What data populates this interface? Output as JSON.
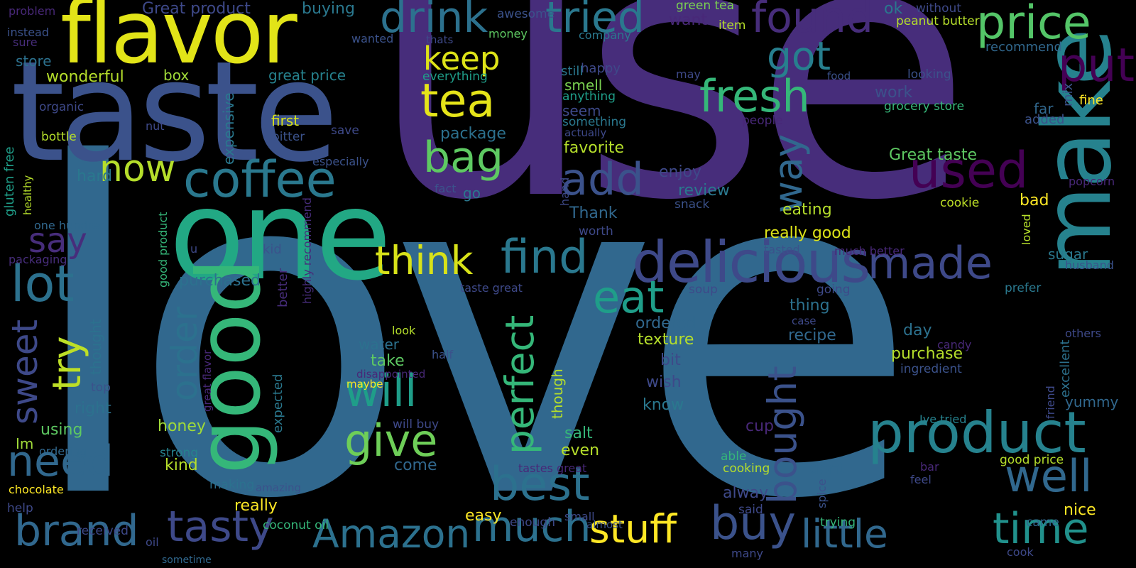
{
  "palette": {
    "dark_purple": "#440154",
    "purple": "#482878",
    "indigo": "#3e4989",
    "blue": "#31688e",
    "teal": "#26828e",
    "green_teal": "#1f9e89",
    "green": "#35b779",
    "light_green": "#6ece58",
    "yellow_green": "#b5de2b",
    "yellow": "#fde725"
  },
  "words": [
    {
      "text": "love",
      "color": "#31688e"
    },
    {
      "text": "use",
      "color": "#472d7b"
    },
    {
      "text": "taste",
      "color": "#3b528b"
    },
    {
      "text": "flavor",
      "color": "#e2e418"
    },
    {
      "text": "one",
      "color": "#22a884"
    },
    {
      "text": "good",
      "color": "#35b779"
    },
    {
      "text": "make",
      "color": "#26828e"
    },
    {
      "text": "product",
      "color": "#26828e"
    },
    {
      "text": "delicious",
      "color": "#3e4989"
    },
    {
      "text": "coffee",
      "color": "#2a788e"
    },
    {
      "text": "drink",
      "color": "#2c718e"
    },
    {
      "text": "tried",
      "color": "#2a788e"
    },
    {
      "text": "found",
      "color": "#472d7b"
    },
    {
      "text": "price",
      "color": "#54c568"
    },
    {
      "text": "tea",
      "color": "#e5e419"
    },
    {
      "text": "keep",
      "color": "#dde318"
    },
    {
      "text": "bag",
      "color": "#5ec962"
    },
    {
      "text": "now",
      "color": "#b5de2b"
    },
    {
      "text": "add",
      "color": "#3b528b"
    },
    {
      "text": "used",
      "color": "#440154"
    },
    {
      "text": "put",
      "color": "#440154"
    },
    {
      "text": "fresh",
      "color": "#35b779"
    },
    {
      "text": "got",
      "color": "#277f8e"
    },
    {
      "text": "way",
      "color": "#31688e"
    },
    {
      "text": "find",
      "color": "#2a788e"
    },
    {
      "text": "think",
      "color": "#d8e219"
    },
    {
      "text": "made",
      "color": "#3e4989"
    },
    {
      "text": "eat",
      "color": "#1f9e89"
    },
    {
      "text": "lot",
      "color": "#2c718e"
    },
    {
      "text": "try",
      "color": "#bddf26"
    },
    {
      "text": "say",
      "color": "#472d7b"
    },
    {
      "text": "sweet",
      "color": "#3e4989"
    },
    {
      "text": "need",
      "color": "#31688e"
    },
    {
      "text": "order",
      "color": "#2c718e"
    },
    {
      "text": "will",
      "color": "#1f9e89"
    },
    {
      "text": "give",
      "color": "#6ece58"
    },
    {
      "text": "perfect",
      "color": "#35b779"
    },
    {
      "text": "bought",
      "color": "#3b528b"
    },
    {
      "text": "best",
      "color": "#2c718e"
    },
    {
      "text": "buy",
      "color": "#3b528b"
    },
    {
      "text": "well",
      "color": "#31688e"
    },
    {
      "text": "brand",
      "color": "#31688e"
    },
    {
      "text": "tasty",
      "color": "#3e4989"
    },
    {
      "text": "Amazon",
      "color": "#2c718e"
    },
    {
      "text": "much",
      "color": "#2c718e"
    },
    {
      "text": "stuff",
      "color": "#fde725"
    },
    {
      "text": "little",
      "color": "#31688e"
    },
    {
      "text": "time",
      "color": "#21918c"
    },
    {
      "text": "Great product",
      "color": "#3e4989"
    },
    {
      "text": "buying",
      "color": "#2a788e"
    },
    {
      "text": "awesome",
      "color": "#3b528b"
    },
    {
      "text": "green tea",
      "color": "#7ad151"
    },
    {
      "text": "ok",
      "color": "#2a788e"
    },
    {
      "text": "without",
      "color": "#3e4989"
    },
    {
      "text": "peanut butter",
      "color": "#b5de2b"
    },
    {
      "text": "money",
      "color": "#5ec962"
    },
    {
      "text": "company",
      "color": "#2a788e"
    },
    {
      "text": "want",
      "color": "#482878"
    },
    {
      "text": "item",
      "color": "#b5de2b"
    },
    {
      "text": "wanted",
      "color": "#3b528b"
    },
    {
      "text": "thats",
      "color": "#3e4989"
    },
    {
      "text": "recommend",
      "color": "#31688e"
    },
    {
      "text": "problem",
      "color": "#482878"
    },
    {
      "text": "instead",
      "color": "#3b528b"
    },
    {
      "text": "sure",
      "color": "#472d7b"
    },
    {
      "text": "store",
      "color": "#2c718e"
    },
    {
      "text": "wonderful",
      "color": "#b5de2b"
    },
    {
      "text": "box",
      "color": "#a0da39"
    },
    {
      "text": "great price",
      "color": "#26828e"
    },
    {
      "text": "everything",
      "color": "#1f9e89"
    },
    {
      "text": "happy",
      "color": "#3e4989"
    },
    {
      "text": "may",
      "color": "#3e4989"
    },
    {
      "text": "food",
      "color": "#3b528b"
    },
    {
      "text": "looking",
      "color": "#3b528b"
    },
    {
      "text": "still",
      "color": "#2a788e"
    },
    {
      "text": "smell",
      "color": "#7ad151"
    },
    {
      "text": "anything",
      "color": "#1f9e89"
    },
    {
      "text": "work",
      "color": "#3b528b"
    },
    {
      "text": "grocery store",
      "color": "#35b779"
    },
    {
      "text": "far",
      "color": "#31688e"
    },
    {
      "text": "mix",
      "color": "#3b528b"
    },
    {
      "text": "fine",
      "color": "#fde725"
    },
    {
      "text": "added",
      "color": "#3b528b"
    },
    {
      "text": "organic",
      "color": "#3e4989"
    },
    {
      "text": "nut",
      "color": "#3e4989"
    },
    {
      "text": "first",
      "color": "#d8e219"
    },
    {
      "text": "bitter",
      "color": "#3b528b"
    },
    {
      "text": "save",
      "color": "#3e4989"
    },
    {
      "text": "seem",
      "color": "#3e4989"
    },
    {
      "text": "something",
      "color": "#2a788e"
    },
    {
      "text": "actually",
      "color": "#3e4989"
    },
    {
      "text": "people",
      "color": "#482878"
    },
    {
      "text": "bottle",
      "color": "#b5de2b"
    },
    {
      "text": "gluten free",
      "color": "#1f9e89"
    },
    {
      "text": "healthy",
      "color": "#b5de2b"
    },
    {
      "text": "expensive",
      "color": "#2a788e"
    },
    {
      "text": "package",
      "color": "#2c718e"
    },
    {
      "text": "favorite",
      "color": "#b5de2b"
    },
    {
      "text": "Great taste",
      "color": "#5ec962"
    },
    {
      "text": "especially",
      "color": "#3b528b"
    },
    {
      "text": "hard",
      "color": "#2a788e"
    },
    {
      "text": "enjoy",
      "color": "#3e4989"
    },
    {
      "text": "popcorn",
      "color": "#482878"
    },
    {
      "text": "hand",
      "color": "#3e4989"
    },
    {
      "text": "fact",
      "color": "#3b528b"
    },
    {
      "text": "go",
      "color": "#2a788e"
    },
    {
      "text": "review",
      "color": "#2a788e"
    },
    {
      "text": "snack",
      "color": "#3b528b"
    },
    {
      "text": "cookie",
      "color": "#bddf26"
    },
    {
      "text": "bad",
      "color": "#fde725"
    },
    {
      "text": "one hundred",
      "color": "#31688e"
    },
    {
      "text": "good product",
      "color": "#35b779"
    },
    {
      "text": "Thank",
      "color": "#31688e"
    },
    {
      "text": "eating",
      "color": "#b5de2b"
    },
    {
      "text": "worth",
      "color": "#3e4989"
    },
    {
      "text": "really good",
      "color": "#dde318"
    },
    {
      "text": "packaging",
      "color": "#472d7b"
    },
    {
      "text": "u",
      "color": "#3e4989"
    },
    {
      "text": "kid",
      "color": "#3b528b"
    },
    {
      "text": "tasted",
      "color": "#3b528b"
    },
    {
      "text": "much better",
      "color": "#482878"
    },
    {
      "text": "loved",
      "color": "#b5de2b"
    },
    {
      "text": "sugar",
      "color": "#2a788e"
    },
    {
      "text": "husband",
      "color": "#3b528b"
    },
    {
      "text": "purchased",
      "color": "#2c718e"
    },
    {
      "text": "better",
      "color": "#472d7b"
    },
    {
      "text": "highly recommend",
      "color": "#472d7b"
    },
    {
      "text": "taste great",
      "color": "#3e4989"
    },
    {
      "text": "soup",
      "color": "#3e4989"
    },
    {
      "text": "going",
      "color": "#3e4989"
    },
    {
      "text": "prefer",
      "color": "#2a788e"
    },
    {
      "text": "thing",
      "color": "#2c718e"
    },
    {
      "text": "case",
      "color": "#3e4989"
    },
    {
      "text": "friend",
      "color": "#3e4989"
    },
    {
      "text": "excellent",
      "color": "#2c718e"
    },
    {
      "text": "thought",
      "color": "#2c718e"
    },
    {
      "text": "ordered",
      "color": "#31688e"
    },
    {
      "text": "recipe",
      "color": "#31688e"
    },
    {
      "text": "day",
      "color": "#2c718e"
    },
    {
      "text": "others",
      "color": "#3e4989"
    },
    {
      "text": "look",
      "color": "#b5de2b"
    },
    {
      "text": "water",
      "color": "#2c718e"
    },
    {
      "text": "texture",
      "color": "#b5de2b"
    },
    {
      "text": "candy",
      "color": "#482878"
    },
    {
      "text": "half",
      "color": "#3b528b"
    },
    {
      "text": "take",
      "color": "#5ec962"
    },
    {
      "text": "purchase",
      "color": "#b5de2b"
    },
    {
      "text": "disappointed",
      "color": "#482878"
    },
    {
      "text": "bit",
      "color": "#3e4989"
    },
    {
      "text": "ingredient",
      "color": "#3b528b"
    },
    {
      "text": "maybe",
      "color": "#fde725"
    },
    {
      "text": "expected",
      "color": "#2a788e"
    },
    {
      "text": "top",
      "color": "#3b528b"
    },
    {
      "text": "great flavor",
      "color": "#482878"
    },
    {
      "text": "right",
      "color": "#2c718e"
    },
    {
      "text": "though",
      "color": "#b5de2b"
    },
    {
      "text": "wish",
      "color": "#3e4989"
    },
    {
      "text": "yummy",
      "color": "#31688e"
    },
    {
      "text": "using",
      "color": "#5ec962"
    },
    {
      "text": "will buy",
      "color": "#3e4989"
    },
    {
      "text": "know",
      "color": "#2a788e"
    },
    {
      "text": "Ive tried",
      "color": "#26828e"
    },
    {
      "text": "Im",
      "color": "#a0da39"
    },
    {
      "text": "honey",
      "color": "#a0da39"
    },
    {
      "text": "salt",
      "color": "#35b779"
    },
    {
      "text": "cup",
      "color": "#482878"
    },
    {
      "text": "ordering",
      "color": "#31688e"
    },
    {
      "text": "strong",
      "color": "#26828e"
    },
    {
      "text": "even",
      "color": "#b5de2b"
    },
    {
      "text": "able",
      "color": "#35b779"
    },
    {
      "text": "good price",
      "color": "#b5de2b"
    },
    {
      "text": "kind",
      "color": "#b5de2b"
    },
    {
      "text": "come",
      "color": "#31688e"
    },
    {
      "text": "cooking",
      "color": "#b5de2b"
    },
    {
      "text": "dont",
      "color": "#31688e"
    },
    {
      "text": "bar",
      "color": "#482878"
    },
    {
      "text": "feel",
      "color": "#3e4989"
    },
    {
      "text": "tastes great",
      "color": "#482878"
    },
    {
      "text": "making",
      "color": "#2c718e"
    },
    {
      "text": "amazing",
      "color": "#3b528b"
    },
    {
      "text": "chocolate",
      "color": "#fde725"
    },
    {
      "text": "alway",
      "color": "#3e4989"
    },
    {
      "text": "spice",
      "color": "#3b528b"
    },
    {
      "text": "help",
      "color": "#3e4989"
    },
    {
      "text": "really",
      "color": "#fde725"
    },
    {
      "text": "easy",
      "color": "#fde725"
    },
    {
      "text": "said",
      "color": "#3e4989"
    },
    {
      "text": "nice",
      "color": "#fde725"
    },
    {
      "text": "enough",
      "color": "#3e4989"
    },
    {
      "text": "small",
      "color": "#3e4989"
    },
    {
      "text": "almost",
      "color": "#3b528b"
    },
    {
      "text": "trying",
      "color": "#35b779"
    },
    {
      "text": "came",
      "color": "#31688e"
    },
    {
      "text": "received",
      "color": "#3e4989"
    },
    {
      "text": "oil",
      "color": "#3e4989"
    },
    {
      "text": "coconut oil",
      "color": "#35b779"
    },
    {
      "text": "sometime",
      "color": "#31688e"
    },
    {
      "text": "many",
      "color": "#3e4989"
    },
    {
      "text": "cook",
      "color": "#3e4989"
    }
  ]
}
